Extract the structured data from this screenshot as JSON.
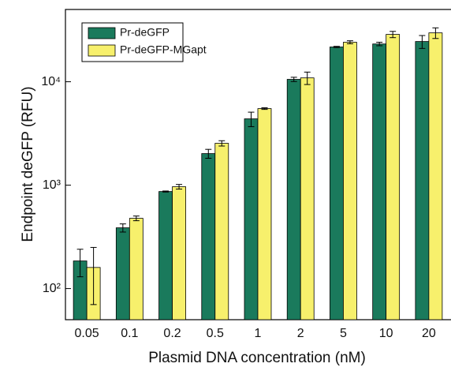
{
  "chart_data": {
    "type": "bar",
    "x_label": "Plasmid DNA concentration (nM)",
    "y_label": "Endpoint deGFP (RFU)",
    "categories": [
      "0.05",
      "0.1",
      "0.2",
      "0.5",
      "1",
      "2",
      "5",
      "10",
      "20"
    ],
    "y_scale": "log",
    "ylim": [
      50,
      50000
    ],
    "yticks": [
      {
        "value": 100,
        "label": "10²"
      },
      {
        "value": 1000,
        "label": "10³"
      },
      {
        "value": 10000,
        "label": "10⁴"
      }
    ],
    "legend_position": "upper left",
    "series": [
      {
        "name": "Pr-deGFP",
        "color": "#1a7a5c",
        "values": [
          185,
          387,
          868,
          2020,
          4380,
          10550,
          21700,
          23200,
          24500
        ],
        "errors": [
          55,
          35,
          10,
          200,
          700,
          500,
          300,
          900,
          3500
        ]
      },
      {
        "name": "Pr-deGFP-MGapt",
        "color": "#f7f06c",
        "values": [
          160,
          478,
          966,
          2540,
          5500,
          10900,
          24100,
          28700,
          29700
        ],
        "errors": [
          90,
          25,
          50,
          150,
          100,
          1500,
          800,
          2000,
          3500
        ]
      }
    ]
  }
}
